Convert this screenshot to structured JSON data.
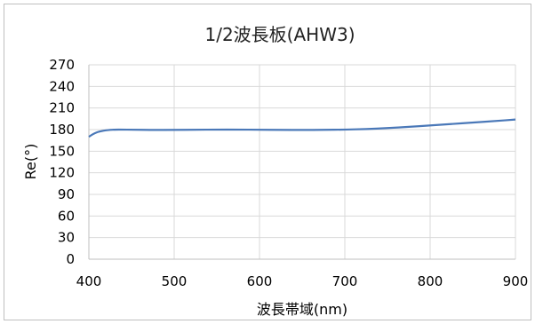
{
  "chart_data": {
    "type": "line",
    "title": "1/2波長板(AHW3)",
    "xlabel": "波長帯域(nm)",
    "ylabel": "Re(°)",
    "xlim": [
      400,
      900
    ],
    "ylim": [
      0,
      270
    ],
    "xticks": [
      400,
      500,
      600,
      700,
      800,
      900
    ],
    "yticks": [
      0,
      30,
      60,
      90,
      120,
      150,
      180,
      210,
      240,
      270
    ],
    "grid": true,
    "legend": "none",
    "series": [
      {
        "color": "#4a78b8",
        "x": [
          400,
          405,
          410,
          415,
          420,
          425,
          430,
          440,
          450,
          475,
          500,
          525,
          550,
          575,
          600,
          625,
          650,
          675,
          700,
          725,
          750,
          775,
          800,
          825,
          850,
          875,
          900
        ],
        "y": [
          170,
          174,
          176.5,
          178,
          179,
          179.6,
          180,
          180,
          179.8,
          179.5,
          179.6,
          179.8,
          180,
          180,
          179.8,
          179.6,
          179.5,
          179.6,
          180,
          180.8,
          182,
          183.8,
          185.8,
          187.8,
          189.8,
          191.8,
          194
        ]
      }
    ]
  }
}
